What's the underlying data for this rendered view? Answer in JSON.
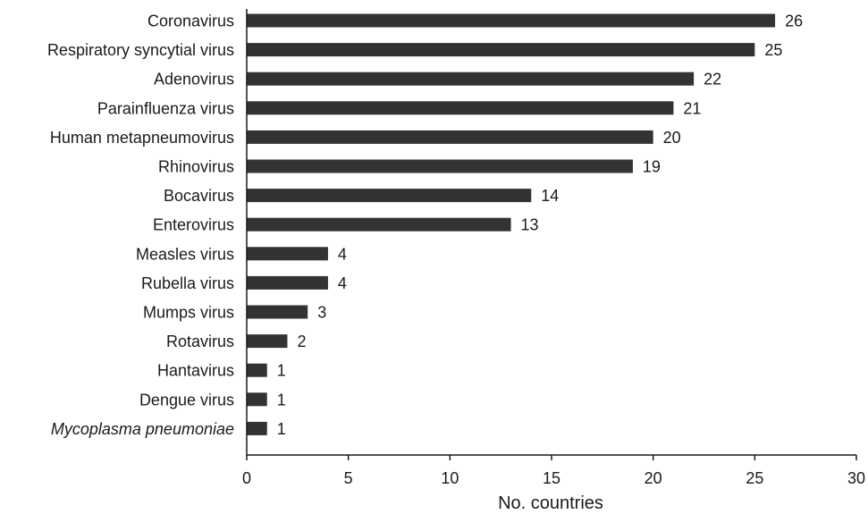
{
  "chart_data": {
    "type": "bar",
    "orientation": "horizontal",
    "categories": [
      "Coronavirus",
      "Respiratory syncytial virus",
      "Adenovirus",
      "Parainfluenza virus",
      "Human metapneumovirus",
      "Rhinovirus",
      "Bocavirus",
      "Enterovirus",
      "Measles virus",
      "Rubella virus",
      "Mumps virus",
      "Rotavirus",
      "Hantavirus",
      "Dengue virus",
      "Mycoplasma pneumoniae"
    ],
    "italic_categories": [
      "Mycoplasma pneumoniae"
    ],
    "values": [
      26,
      25,
      22,
      21,
      20,
      19,
      14,
      13,
      4,
      4,
      3,
      2,
      1,
      1,
      1
    ],
    "xlabel": "No. countries",
    "xlim": [
      0,
      30
    ],
    "xticks": [
      0,
      5,
      10,
      15,
      20,
      25,
      30
    ],
    "grid": false,
    "legend": "none",
    "bar_color": "#333333",
    "axis_color": "#1a1a1a"
  }
}
